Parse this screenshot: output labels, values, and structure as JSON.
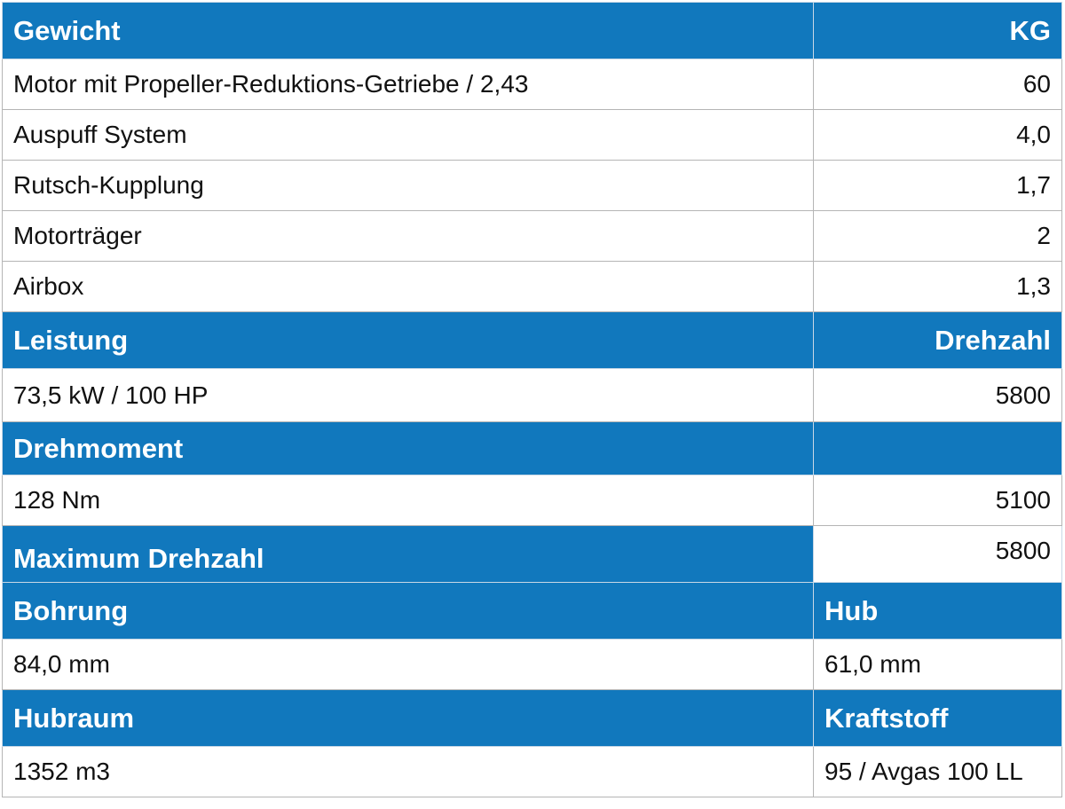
{
  "gewicht": {
    "header": {
      "label": "Gewicht",
      "unit": "KG"
    },
    "rows": [
      {
        "label": "Motor mit Propeller-Reduktions-Getriebe /  2,43",
        "value": "60"
      },
      {
        "label": "Auspuff System",
        "value": "4,0"
      },
      {
        "label": "Rutsch-Kupplung",
        "value": "1,7"
      },
      {
        "label": "Motorträger",
        "value": "2"
      },
      {
        "label": "Airbox",
        "value": "1,3"
      }
    ]
  },
  "leistung": {
    "header": {
      "label": "Leistung",
      "right": "Drehzahl"
    },
    "value": "73,5 kW / 100 HP",
    "rpm": "5800"
  },
  "drehmoment": {
    "header": {
      "label": "Drehmoment",
      "right": ""
    },
    "value": "128 Nm",
    "rpm": "5100"
  },
  "maximum_drehzahl": {
    "label": "Maximum Drehzahl",
    "value": "5800"
  },
  "bohrung_hub": {
    "header": {
      "left": "Bohrung",
      "right": "Hub"
    },
    "values": {
      "left": "84,0 mm",
      "right": "61,0 mm"
    }
  },
  "hubraum_kraftstoff": {
    "header": {
      "left": "Hubraum",
      "right": "Kraftstoff"
    },
    "values": {
      "left": "1352 m3",
      "right": "95 / Avgas 100 LL"
    }
  },
  "colors": {
    "header_blue": "#1178bd",
    "border_gray": "#b5b5b5",
    "text": "#111111",
    "background": "#ffffff"
  }
}
